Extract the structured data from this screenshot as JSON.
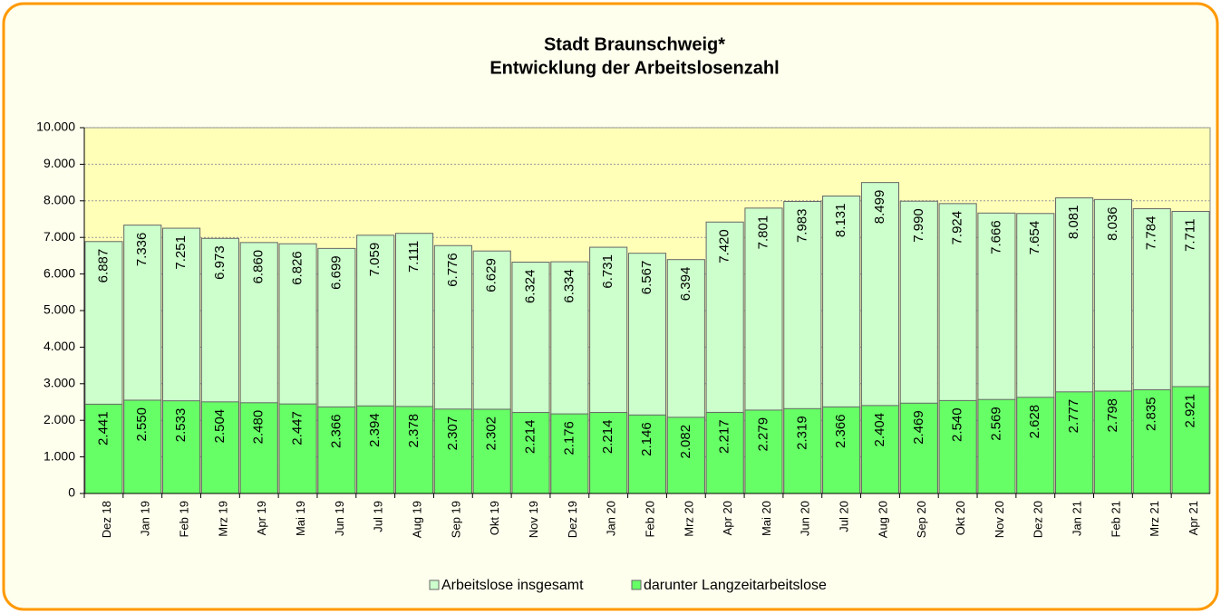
{
  "chart_data": {
    "type": "bar",
    "title": "Stadt Braunschweig*",
    "subtitle": "Entwicklung der Arbeitslosenzahl",
    "categories": [
      "Dez 18",
      "Jan 19",
      "Feb 19",
      "Mrz 19",
      "Apr 19",
      "Mai 19",
      "Jun 19",
      "Jul 19",
      "Aug 19",
      "Sep 19",
      "Okt 19",
      "Nov 19",
      "Dez 19",
      "Jan 20",
      "Feb 20",
      "Mrz 20",
      "Apr 20",
      "Mai 20",
      "Jun 20",
      "Jul 20",
      "Aug 20",
      "Sep 20",
      "Okt 20",
      "Nov 20",
      "Dez 20",
      "Jan 21",
      "Feb 21",
      "Mrz 21",
      "Apr 21"
    ],
    "series": [
      {
        "name": "Arbeitslose insgesamt",
        "color": "#ccffcc",
        "values": [
          6887,
          7336,
          7251,
          6973,
          6860,
          6826,
          6699,
          7059,
          7111,
          6776,
          6629,
          6324,
          6334,
          6731,
          6567,
          6394,
          7420,
          7801,
          7983,
          8131,
          8499,
          7990,
          7924,
          7666,
          7654,
          8081,
          8036,
          7784,
          7711
        ],
        "value_labels": [
          "6.887",
          "7.336",
          "7.251",
          "6.973",
          "6.860",
          "6.826",
          "6.699",
          "7.059",
          "7.111",
          "6.776",
          "6.629",
          "6.324",
          "6.334",
          "6.731",
          "6.567",
          "6.394",
          "7.420",
          "7.801",
          "7.983",
          "8.131",
          "8.499",
          "7.990",
          "7.924",
          "7.666",
          "7.654",
          "8.081",
          "8.036",
          "7.784",
          "7.711"
        ]
      },
      {
        "name": "darunter Langzeitarbeitslose",
        "color": "#66ff66",
        "values": [
          2441,
          2550,
          2533,
          2504,
          2480,
          2447,
          2366,
          2394,
          2378,
          2307,
          2302,
          2214,
          2176,
          2214,
          2146,
          2082,
          2217,
          2279,
          2319,
          2366,
          2404,
          2469,
          2540,
          2569,
          2628,
          2777,
          2798,
          2835,
          2921
        ],
        "value_labels": [
          "2.441",
          "2.550",
          "2.533",
          "2.504",
          "2.480",
          "2.447",
          "2.366",
          "2.394",
          "2.378",
          "2.307",
          "2.302",
          "2.214",
          "2.176",
          "2.214",
          "2.146",
          "2.082",
          "2.217",
          "2.279",
          "2.319",
          "2.366",
          "2.404",
          "2.469",
          "2.540",
          "2.569",
          "2.628",
          "2.777",
          "2.798",
          "2.835",
          "2.921"
        ]
      }
    ],
    "ylim": [
      0,
      10000
    ],
    "yticks": [
      0,
      {
        "value": 1000,
        "label": "1.000"
      },
      {
        "value": 2000,
        "label": "2.000"
      },
      {
        "value": 3000,
        "label": "3.000"
      },
      {
        "value": 4000,
        "label": "4.000"
      },
      {
        "value": 5000,
        "label": "5.000"
      },
      {
        "value": 6000,
        "label": "6.000"
      },
      {
        "value": 7000,
        "label": "7.000"
      },
      {
        "value": 8000,
        "label": "8.000"
      },
      {
        "value": 9000,
        "label": "9.000"
      },
      {
        "value": 10000,
        "label": "10.000"
      }
    ],
    "grid": true,
    "legend": "bottom"
  }
}
